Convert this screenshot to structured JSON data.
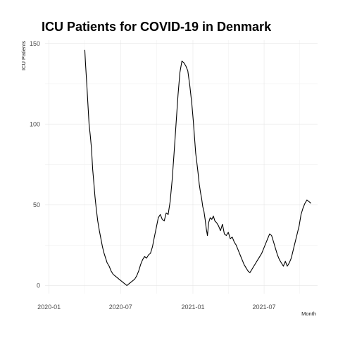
{
  "chart_data": {
    "type": "line",
    "title": "ICU Patients for COVID-19 in Denmark",
    "xlabel": "Month",
    "ylabel": "ICU Patients",
    "x_ticks": [
      "2020-01",
      "2020-07",
      "2021-01",
      "2021-07"
    ],
    "y_ticks": [
      0,
      50,
      100,
      150
    ],
    "xlim": [
      "2019-12-22",
      "2021-11-14"
    ],
    "ylim": [
      -5,
      152
    ],
    "grid": true,
    "legend": "none",
    "series": [
      {
        "x": [
          "2020-04-01",
          "2020-04-03",
          "2020-04-06",
          "2020-04-09",
          "2020-04-12",
          "2020-04-15",
          "2020-04-18",
          "2020-04-21",
          "2020-04-24",
          "2020-04-27",
          "2020-04-30",
          "2020-05-04",
          "2020-05-08",
          "2020-05-12",
          "2020-05-16",
          "2020-05-20",
          "2020-05-24",
          "2020-05-28",
          "2020-06-02",
          "2020-06-07",
          "2020-06-12",
          "2020-06-17",
          "2020-06-22",
          "2020-06-27",
          "2020-07-02",
          "2020-07-07",
          "2020-07-12",
          "2020-07-17",
          "2020-07-22",
          "2020-07-27",
          "2020-08-01",
          "2020-08-06",
          "2020-08-11",
          "2020-08-16",
          "2020-08-21",
          "2020-08-26",
          "2020-08-31",
          "2020-09-05",
          "2020-09-10",
          "2020-09-15",
          "2020-09-20",
          "2020-09-25",
          "2020-09-30",
          "2020-10-05",
          "2020-10-10",
          "2020-10-15",
          "2020-10-20",
          "2020-10-25",
          "2020-10-30",
          "2020-11-04",
          "2020-11-09",
          "2020-11-14",
          "2020-11-19",
          "2020-11-24",
          "2020-11-29",
          "2020-12-04",
          "2020-12-09",
          "2020-12-14",
          "2020-12-19",
          "2020-12-24",
          "2020-12-29",
          "2021-01-02",
          "2021-01-05",
          "2021-01-08",
          "2021-01-11",
          "2021-01-14",
          "2021-01-17",
          "2021-01-20",
          "2021-01-23",
          "2021-01-26",
          "2021-01-29",
          "2021-02-01",
          "2021-02-04",
          "2021-02-07",
          "2021-02-10",
          "2021-02-14",
          "2021-02-18",
          "2021-02-22",
          "2021-02-26",
          "2021-03-02",
          "2021-03-07",
          "2021-03-12",
          "2021-03-17",
          "2021-03-22",
          "2021-03-27",
          "2021-04-01",
          "2021-04-06",
          "2021-04-11",
          "2021-04-16",
          "2021-04-21",
          "2021-04-26",
          "2021-05-01",
          "2021-05-06",
          "2021-05-11",
          "2021-05-16",
          "2021-05-21",
          "2021-05-26",
          "2021-05-31",
          "2021-06-05",
          "2021-06-10",
          "2021-06-15",
          "2021-06-20",
          "2021-06-25",
          "2021-06-30",
          "2021-07-05",
          "2021-07-10",
          "2021-07-15",
          "2021-07-20",
          "2021-07-25",
          "2021-07-30",
          "2021-08-04",
          "2021-08-09",
          "2021-08-14",
          "2021-08-19",
          "2021-08-24",
          "2021-08-29",
          "2021-09-03",
          "2021-09-08",
          "2021-09-13",
          "2021-09-18",
          "2021-09-23",
          "2021-09-28",
          "2021-10-03",
          "2021-10-08",
          "2021-10-13",
          "2021-10-18",
          "2021-10-23",
          "2021-10-28"
        ],
        "values": [
          146,
          137,
          125,
          112,
          100,
          93,
          85,
          72,
          64,
          55,
          48,
          40,
          34,
          29,
          24,
          20,
          17,
          14,
          12,
          9,
          7,
          6,
          5,
          4,
          3,
          2,
          1,
          0,
          1,
          2,
          3,
          4,
          6,
          9,
          13,
          16,
          18,
          17,
          19,
          20,
          24,
          30,
          36,
          42,
          44,
          41,
          40,
          45,
          44,
          52,
          65,
          82,
          100,
          118,
          132,
          139,
          138,
          136,
          133,
          124,
          113,
          102,
          92,
          82,
          76,
          70,
          63,
          58,
          54,
          49,
          46,
          41,
          35,
          31,
          39,
          42,
          41,
          43,
          40,
          39,
          37,
          34,
          38,
          32,
          31,
          33,
          29,
          30,
          27,
          25,
          22,
          19,
          16,
          13,
          11,
          9,
          8,
          10,
          12,
          14,
          16,
          18,
          20,
          23,
          26,
          29,
          32,
          31,
          27,
          23,
          19,
          16,
          14,
          12,
          15,
          12,
          14,
          17,
          22,
          27,
          32,
          37,
          44,
          48,
          51,
          53,
          52,
          51
        ]
      }
    ]
  }
}
